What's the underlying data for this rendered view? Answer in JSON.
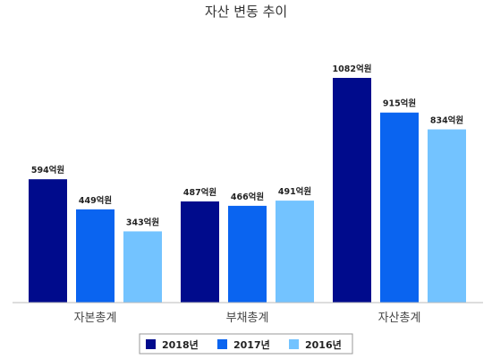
{
  "chart_data": {
    "type": "bar",
    "title": "자산 변동 추이",
    "categories": [
      "자본총계",
      "부채총계",
      "자산총계"
    ],
    "series": [
      {
        "name": "2018년",
        "color": "#000b8c",
        "values": [
          594,
          487,
          1082
        ],
        "labels": [
          "594억원",
          "487억원",
          "1082억원"
        ]
      },
      {
        "name": "2017년",
        "color": "#0a64f0",
        "values": [
          449,
          466,
          915
        ],
        "labels": [
          "449억원",
          "466억원",
          "915억원"
        ]
      },
      {
        "name": "2016년",
        "color": "#73c3ff",
        "values": [
          343,
          491,
          834
        ],
        "labels": [
          "343억원",
          "491억원",
          "834억원"
        ]
      }
    ],
    "ylim": [
      0,
      1082
    ],
    "grid": false,
    "legend": "bottom"
  }
}
